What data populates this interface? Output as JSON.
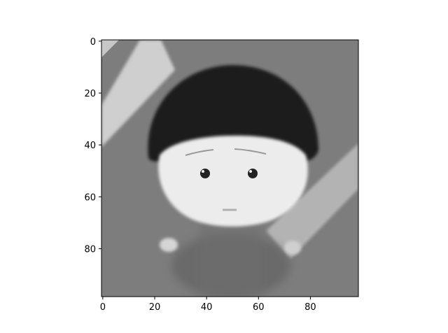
{
  "chart_data": {
    "type": "heatmap",
    "title": "",
    "xlabel": "",
    "ylabel": "",
    "colormap": "gray",
    "xlim": [
      -0.5,
      98.5
    ],
    "ylim": [
      98.5,
      -0.5
    ],
    "xticks": [
      0,
      20,
      40,
      60,
      80
    ],
    "yticks": [
      0,
      20,
      40,
      60,
      80
    ],
    "xtick_labels": [
      "0",
      "20",
      "40",
      "60",
      "80"
    ],
    "ytick_labels": [
      "0",
      "20",
      "40",
      "60",
      "80"
    ],
    "grid": false,
    "image": {
      "width": 99,
      "height": 99,
      "description": "grayscale cartoon face: gray background with diagonal light streaks, dark rounded bangs/hair, pale round face with two dark dot eyes and a small mouth",
      "background_gray": 0.5,
      "hair_gray": 0.1,
      "face_gray": 0.93
    }
  }
}
